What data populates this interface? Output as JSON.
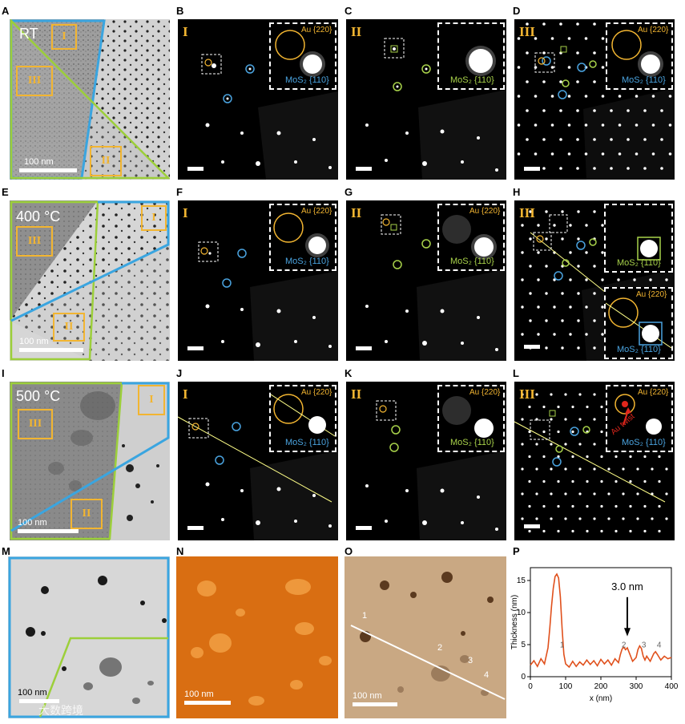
{
  "panels": {
    "A": "A",
    "B": "B",
    "C": "C",
    "D": "D",
    "E": "E",
    "F": "F",
    "G": "G",
    "H": "H",
    "I": "I",
    "J": "J",
    "K": "K",
    "L": "L",
    "M": "M",
    "N": "N",
    "O": "O",
    "P": "P"
  },
  "roman": {
    "I": "I",
    "II": "II",
    "III": "III"
  },
  "conditions": {
    "rt": "RT",
    "t400": "400 °C",
    "t500": "500 °C"
  },
  "scale": {
    "nm100": "100 nm"
  },
  "labels": {
    "au": "Au {220}",
    "mos": "MoS₂ {110}",
    "twist": "Au twist"
  },
  "colors": {
    "au": "#f2b531",
    "mos_blue": "#4aa3df",
    "mos_green": "#a8d24a",
    "line": "#ffff88",
    "red": "#e0261c",
    "profile": "#e0501c"
  },
  "afm_numbers": [
    "1",
    "2",
    "3",
    "4"
  ],
  "watermark": "大数跨境",
  "chart_data": {
    "type": "line",
    "xlabel": "x (nm)",
    "ylabel": "Thickness (nm)",
    "xlim": [
      0,
      400
    ],
    "ylim": [
      0,
      17
    ],
    "xticks": [
      0,
      100,
      200,
      300,
      400
    ],
    "yticks": [
      0,
      5,
      10,
      15
    ],
    "annotation": "3.0 nm",
    "peak_labels": [
      "1",
      "2",
      "3",
      "4"
    ],
    "series": [
      {
        "x": [
          0,
          10,
          20,
          30,
          40,
          50,
          55,
          60,
          65,
          70,
          75,
          80,
          85,
          90,
          95,
          100,
          110,
          120,
          130,
          140,
          150,
          160,
          170,
          180,
          190,
          200,
          210,
          220,
          230,
          240,
          250,
          255,
          260,
          265,
          270,
          275,
          280,
          290,
          300,
          305,
          310,
          315,
          320,
          325,
          330,
          340,
          350,
          355,
          360,
          370,
          380,
          390,
          400
        ],
        "y": [
          1.8,
          2.5,
          1.6,
          2.8,
          2.0,
          4.5,
          7.5,
          11,
          13.8,
          15.6,
          16.0,
          15.4,
          12.5,
          7.5,
          3.5,
          2.0,
          1.5,
          2.4,
          1.6,
          2.3,
          1.8,
          2.6,
          1.9,
          2.5,
          1.7,
          2.7,
          2.0,
          2.6,
          1.8,
          2.8,
          2.2,
          3.4,
          4.3,
          4.6,
          4.2,
          4.5,
          3.8,
          2.4,
          3.0,
          4.2,
          4.8,
          4.4,
          3.2,
          2.6,
          3.2,
          2.4,
          3.6,
          3.9,
          3.5,
          2.6,
          3.2,
          2.8,
          3.0
        ]
      }
    ]
  }
}
